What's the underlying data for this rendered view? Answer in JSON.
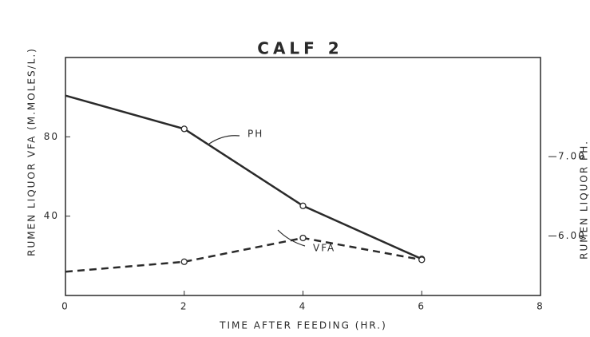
{
  "chart_data": {
    "type": "line",
    "title": "CALF 2",
    "x_label": "TIME AFTER FEEDING (HR.)",
    "y_label": "RUMEN LIQUOR VFA (M.MOLES/L.)",
    "y2_label": "RUMEN LIQUOR PH.",
    "x": [
      0,
      2,
      4,
      6
    ],
    "xlim": [
      0,
      8
    ],
    "xticks": [
      0,
      2,
      4,
      6,
      8
    ],
    "ylim": [
      0,
      120
    ],
    "yticks": [
      40,
      80
    ],
    "y2lim": [
      5.25,
      8.25
    ],
    "y2ticks": [
      {
        "value": 6,
        "label": "6.00"
      },
      {
        "value": 7,
        "label": "7.00"
      }
    ],
    "series": [
      {
        "name": "PH",
        "color": "#2a2a2a",
        "dash": false,
        "axis": "y2",
        "values": [
          7.77,
          7.35,
          6.38,
          5.71
        ]
      },
      {
        "name": "VFA",
        "color": "#2a2a2a",
        "dash": true,
        "values": [
          12,
          17,
          29,
          18
        ]
      }
    ]
  }
}
